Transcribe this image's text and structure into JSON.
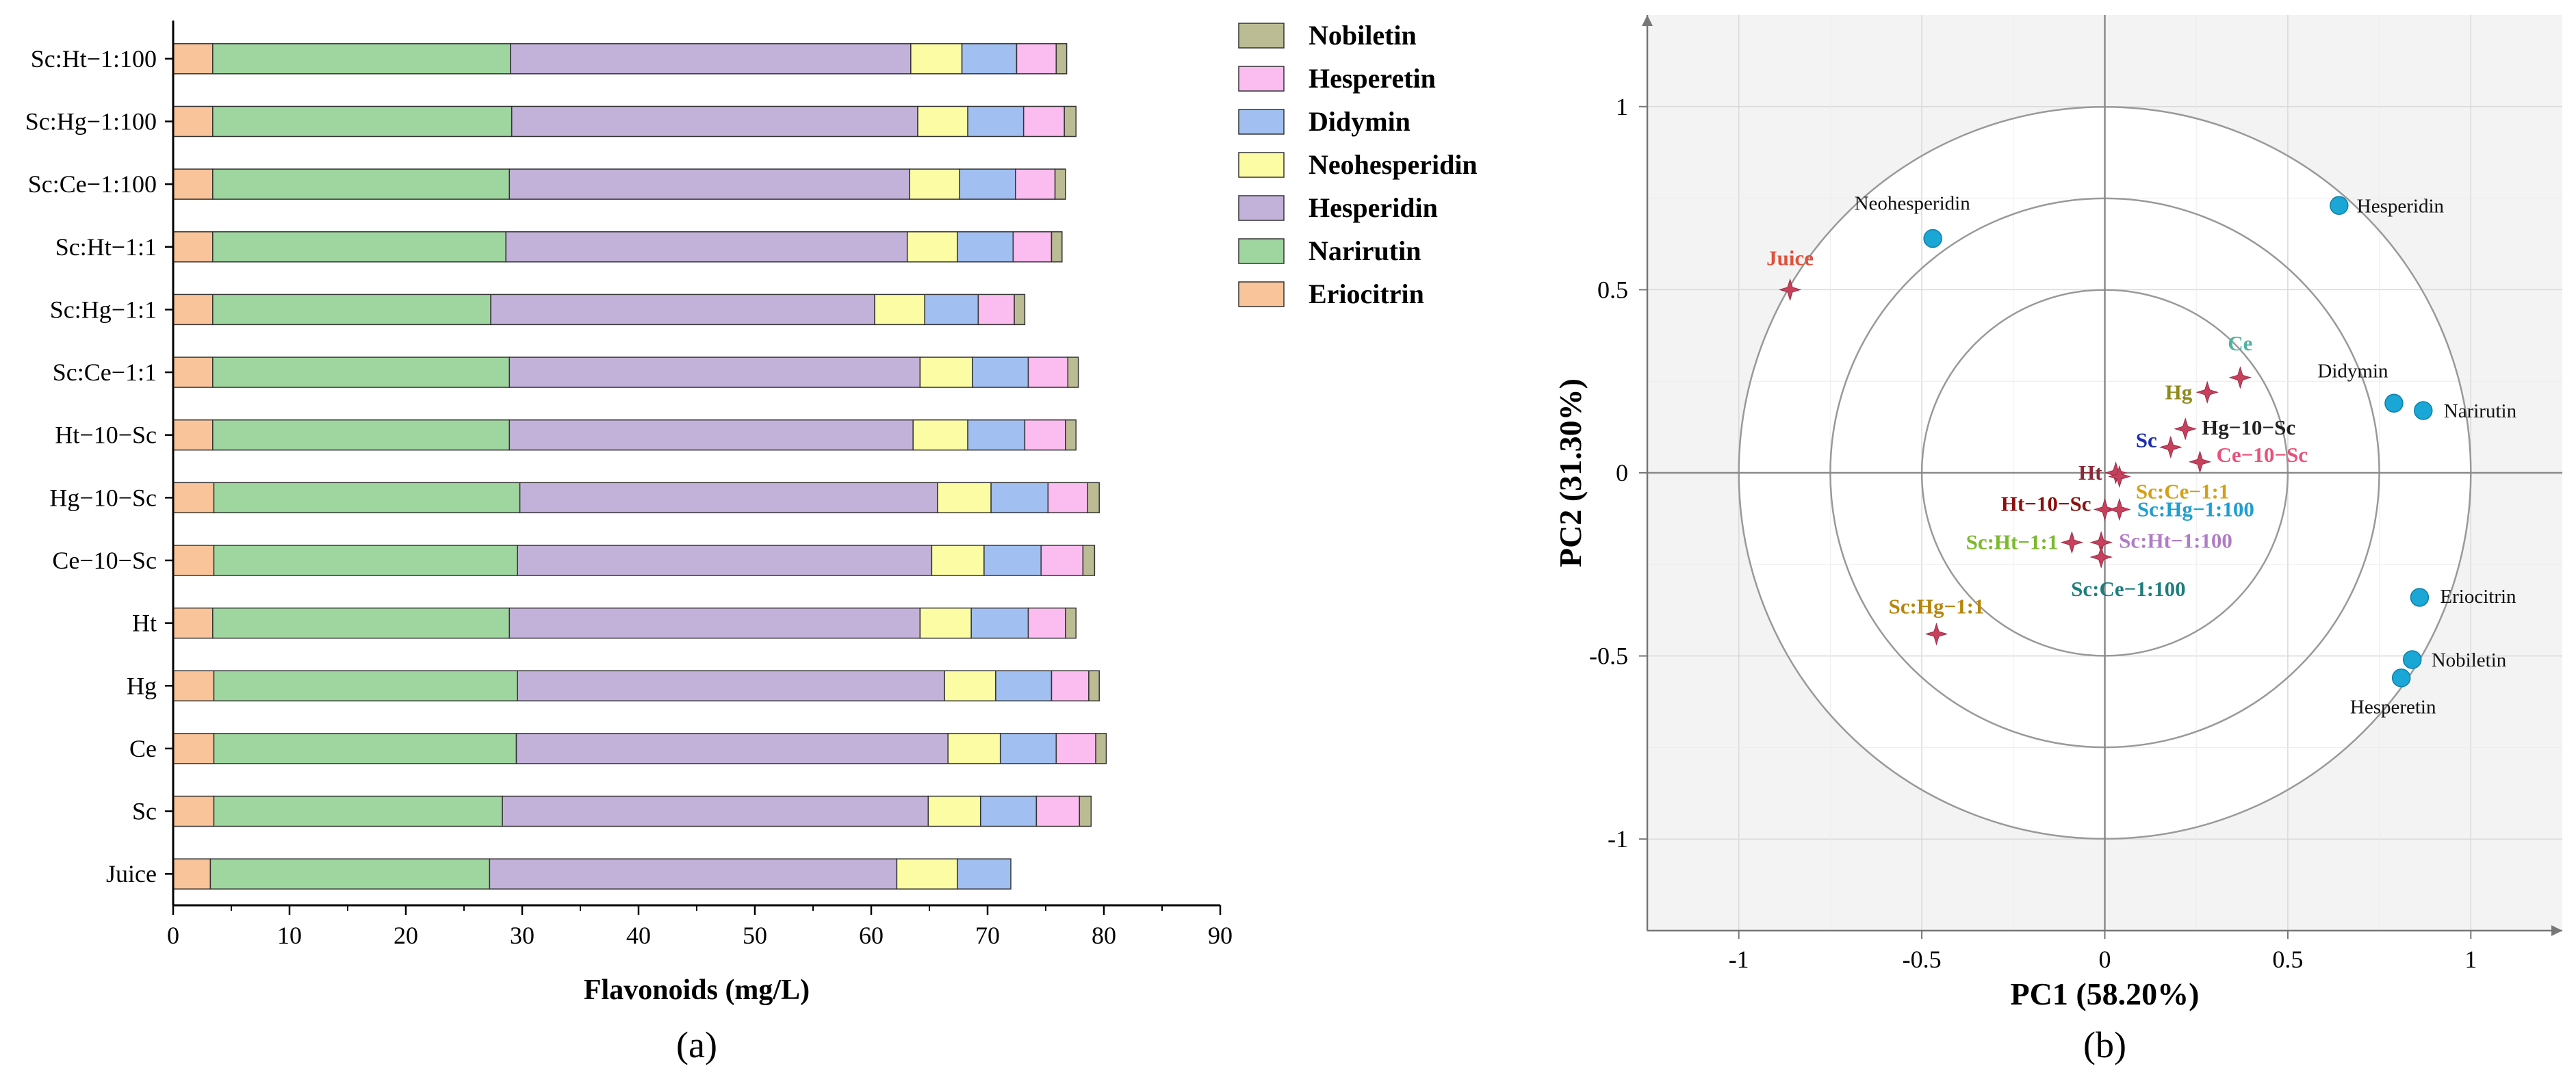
{
  "chart_data": [
    {
      "type": "bar",
      "stacked": true,
      "orientation": "horizontal",
      "panel_label": "(a)",
      "xlabel": "Flavonoids (mg/L)",
      "ylabel": "",
      "xlim": [
        0,
        90
      ],
      "xticks": [
        "0",
        "10",
        "20",
        "30",
        "40",
        "50",
        "60",
        "70",
        "80",
        "90"
      ],
      "grid": false,
      "legend_position": "right",
      "categories": [
        "Sc:Ht−1:100",
        "Sc:Hg−1:100",
        "Sc:Ce−1:100",
        "Sc:Ht−1:1",
        "Sc:Hg−1:1",
        "Sc:Ce−1:1",
        "Ht−10−Sc",
        "Hg−10−Sc",
        "Ce−10−Sc",
        "Ht",
        "Hg",
        "Ce",
        "Sc",
        "Juice"
      ],
      "series": [
        {
          "name": "Eriocitrin",
          "color": "#f9c49a",
          "values": [
            3.4,
            3.4,
            3.4,
            3.4,
            3.4,
            3.4,
            3.4,
            3.5,
            3.5,
            3.4,
            3.5,
            3.5,
            3.5,
            3.2
          ]
        },
        {
          "name": "Narirutin",
          "color": "#9fd69f",
          "values": [
            25.6,
            25.7,
            25.5,
            25.2,
            23.9,
            25.5,
            25.5,
            26.3,
            26.1,
            25.5,
            26.1,
            26.0,
            24.8,
            24.0
          ]
        },
        {
          "name": "Hesperidin",
          "color": "#c2b1d8",
          "values": [
            34.4,
            34.9,
            34.4,
            34.5,
            33.0,
            35.3,
            34.7,
            35.9,
            35.6,
            35.3,
            36.7,
            37.1,
            36.6,
            35.0
          ]
        },
        {
          "name": "Neohesperidin",
          "color": "#fcfca4",
          "values": [
            4.4,
            4.3,
            4.3,
            4.3,
            4.3,
            4.5,
            4.7,
            4.6,
            4.5,
            4.4,
            4.4,
            4.5,
            4.5,
            5.2
          ]
        },
        {
          "name": "Didymin",
          "color": "#a1bff0",
          "values": [
            4.7,
            4.8,
            4.8,
            4.8,
            4.6,
            4.8,
            4.9,
            4.9,
            4.9,
            4.9,
            4.8,
            4.8,
            4.8,
            4.6
          ]
        },
        {
          "name": "Hesperetin",
          "color": "#fbbcf0",
          "values": [
            3.4,
            3.5,
            3.4,
            3.3,
            3.1,
            3.4,
            3.5,
            3.4,
            3.6,
            3.2,
            3.2,
            3.4,
            3.7,
            0.0
          ]
        },
        {
          "name": "Nobiletin",
          "color": "#bcbc94",
          "values": [
            0.9,
            1.0,
            0.9,
            0.9,
            0.9,
            0.9,
            0.9,
            1.0,
            1.0,
            0.9,
            0.9,
            0.9,
            1.0,
            0.0
          ]
        }
      ],
      "legend_order": [
        "Nobiletin",
        "Hesperetin",
        "Didymin",
        "Neohesperidin",
        "Hesperidin",
        "Narirutin",
        "Eriocitrin"
      ]
    },
    {
      "type": "scatter",
      "subtype": "pca-biplot",
      "panel_label": "(b)",
      "xlabel": "PC1 (58.20%)",
      "ylabel": "PC2 (31.30%)",
      "xlim": [
        -1.25,
        1.25
      ],
      "ylim": [
        -1.25,
        1.25
      ],
      "xticks": [
        "-1",
        "-0.5",
        "0",
        "0.5",
        "1"
      ],
      "yticks": [
        "1",
        "0.5",
        "0",
        "-0.5",
        "-1"
      ],
      "circle_radii": [
        0.5,
        0.75,
        1.0
      ],
      "grid": true,
      "loadings": [
        {
          "label": "Hesperidin",
          "x": 0.64,
          "y": 0.73,
          "color": "#1aa7d6"
        },
        {
          "label": "Neohesperidin",
          "x": -0.47,
          "y": 0.64,
          "color": "#1aa7d6"
        },
        {
          "label": "Didymin",
          "x": 0.79,
          "y": 0.19,
          "color": "#1aa7d6"
        },
        {
          "label": "Narirutin",
          "x": 0.87,
          "y": 0.17,
          "color": "#1aa7d6"
        },
        {
          "label": "Eriocitrin",
          "x": 0.86,
          "y": -0.34,
          "color": "#1aa7d6"
        },
        {
          "label": "Nobiletin",
          "x": 0.84,
          "y": -0.51,
          "color": "#1aa7d6"
        },
        {
          "label": "Hesperetin",
          "x": 0.81,
          "y": -0.56,
          "color": "#1aa7d6"
        }
      ],
      "samples": [
        {
          "label": "Juice",
          "x": -0.86,
          "y": 0.5,
          "color": "#e0503c"
        },
        {
          "label": "Ce",
          "x": 0.37,
          "y": 0.26,
          "color": "#4db3a0"
        },
        {
          "label": "Hg",
          "x": 0.28,
          "y": 0.22,
          "color": "#8f8a1c"
        },
        {
          "label": "Hg−10−Sc",
          "x": 0.22,
          "y": 0.12,
          "color": "#222222"
        },
        {
          "label": "Sc",
          "x": 0.18,
          "y": 0.07,
          "color": "#1c2fb0"
        },
        {
          "label": "Ce−10−Sc",
          "x": 0.26,
          "y": 0.03,
          "color": "#e8527a"
        },
        {
          "label": "Ht",
          "x": 0.03,
          "y": 0.0,
          "color": "#8a2b3a"
        },
        {
          "label": "Sc:Ce−1:1",
          "x": 0.04,
          "y": -0.01,
          "color": "#d4a017"
        },
        {
          "label": "Ht−10−Sc",
          "x": 0.0,
          "y": -0.1,
          "color": "#8b0f0f"
        },
        {
          "label": "Sc:Hg−1:100",
          "x": 0.04,
          "y": -0.1,
          "color": "#1e9fd0"
        },
        {
          "label": "Sc:Ht−1:1",
          "x": -0.09,
          "y": -0.19,
          "color": "#7cb92f"
        },
        {
          "label": "Sc:Ht−1:100",
          "x": -0.01,
          "y": -0.19,
          "color": "#b07cc6"
        },
        {
          "label": "Sc:Ce−1:100",
          "x": -0.01,
          "y": -0.23,
          "color": "#1f7d7d"
        },
        {
          "label": "Sc:Hg−1:1",
          "x": -0.46,
          "y": -0.44,
          "color": "#b8860b"
        }
      ]
    }
  ]
}
